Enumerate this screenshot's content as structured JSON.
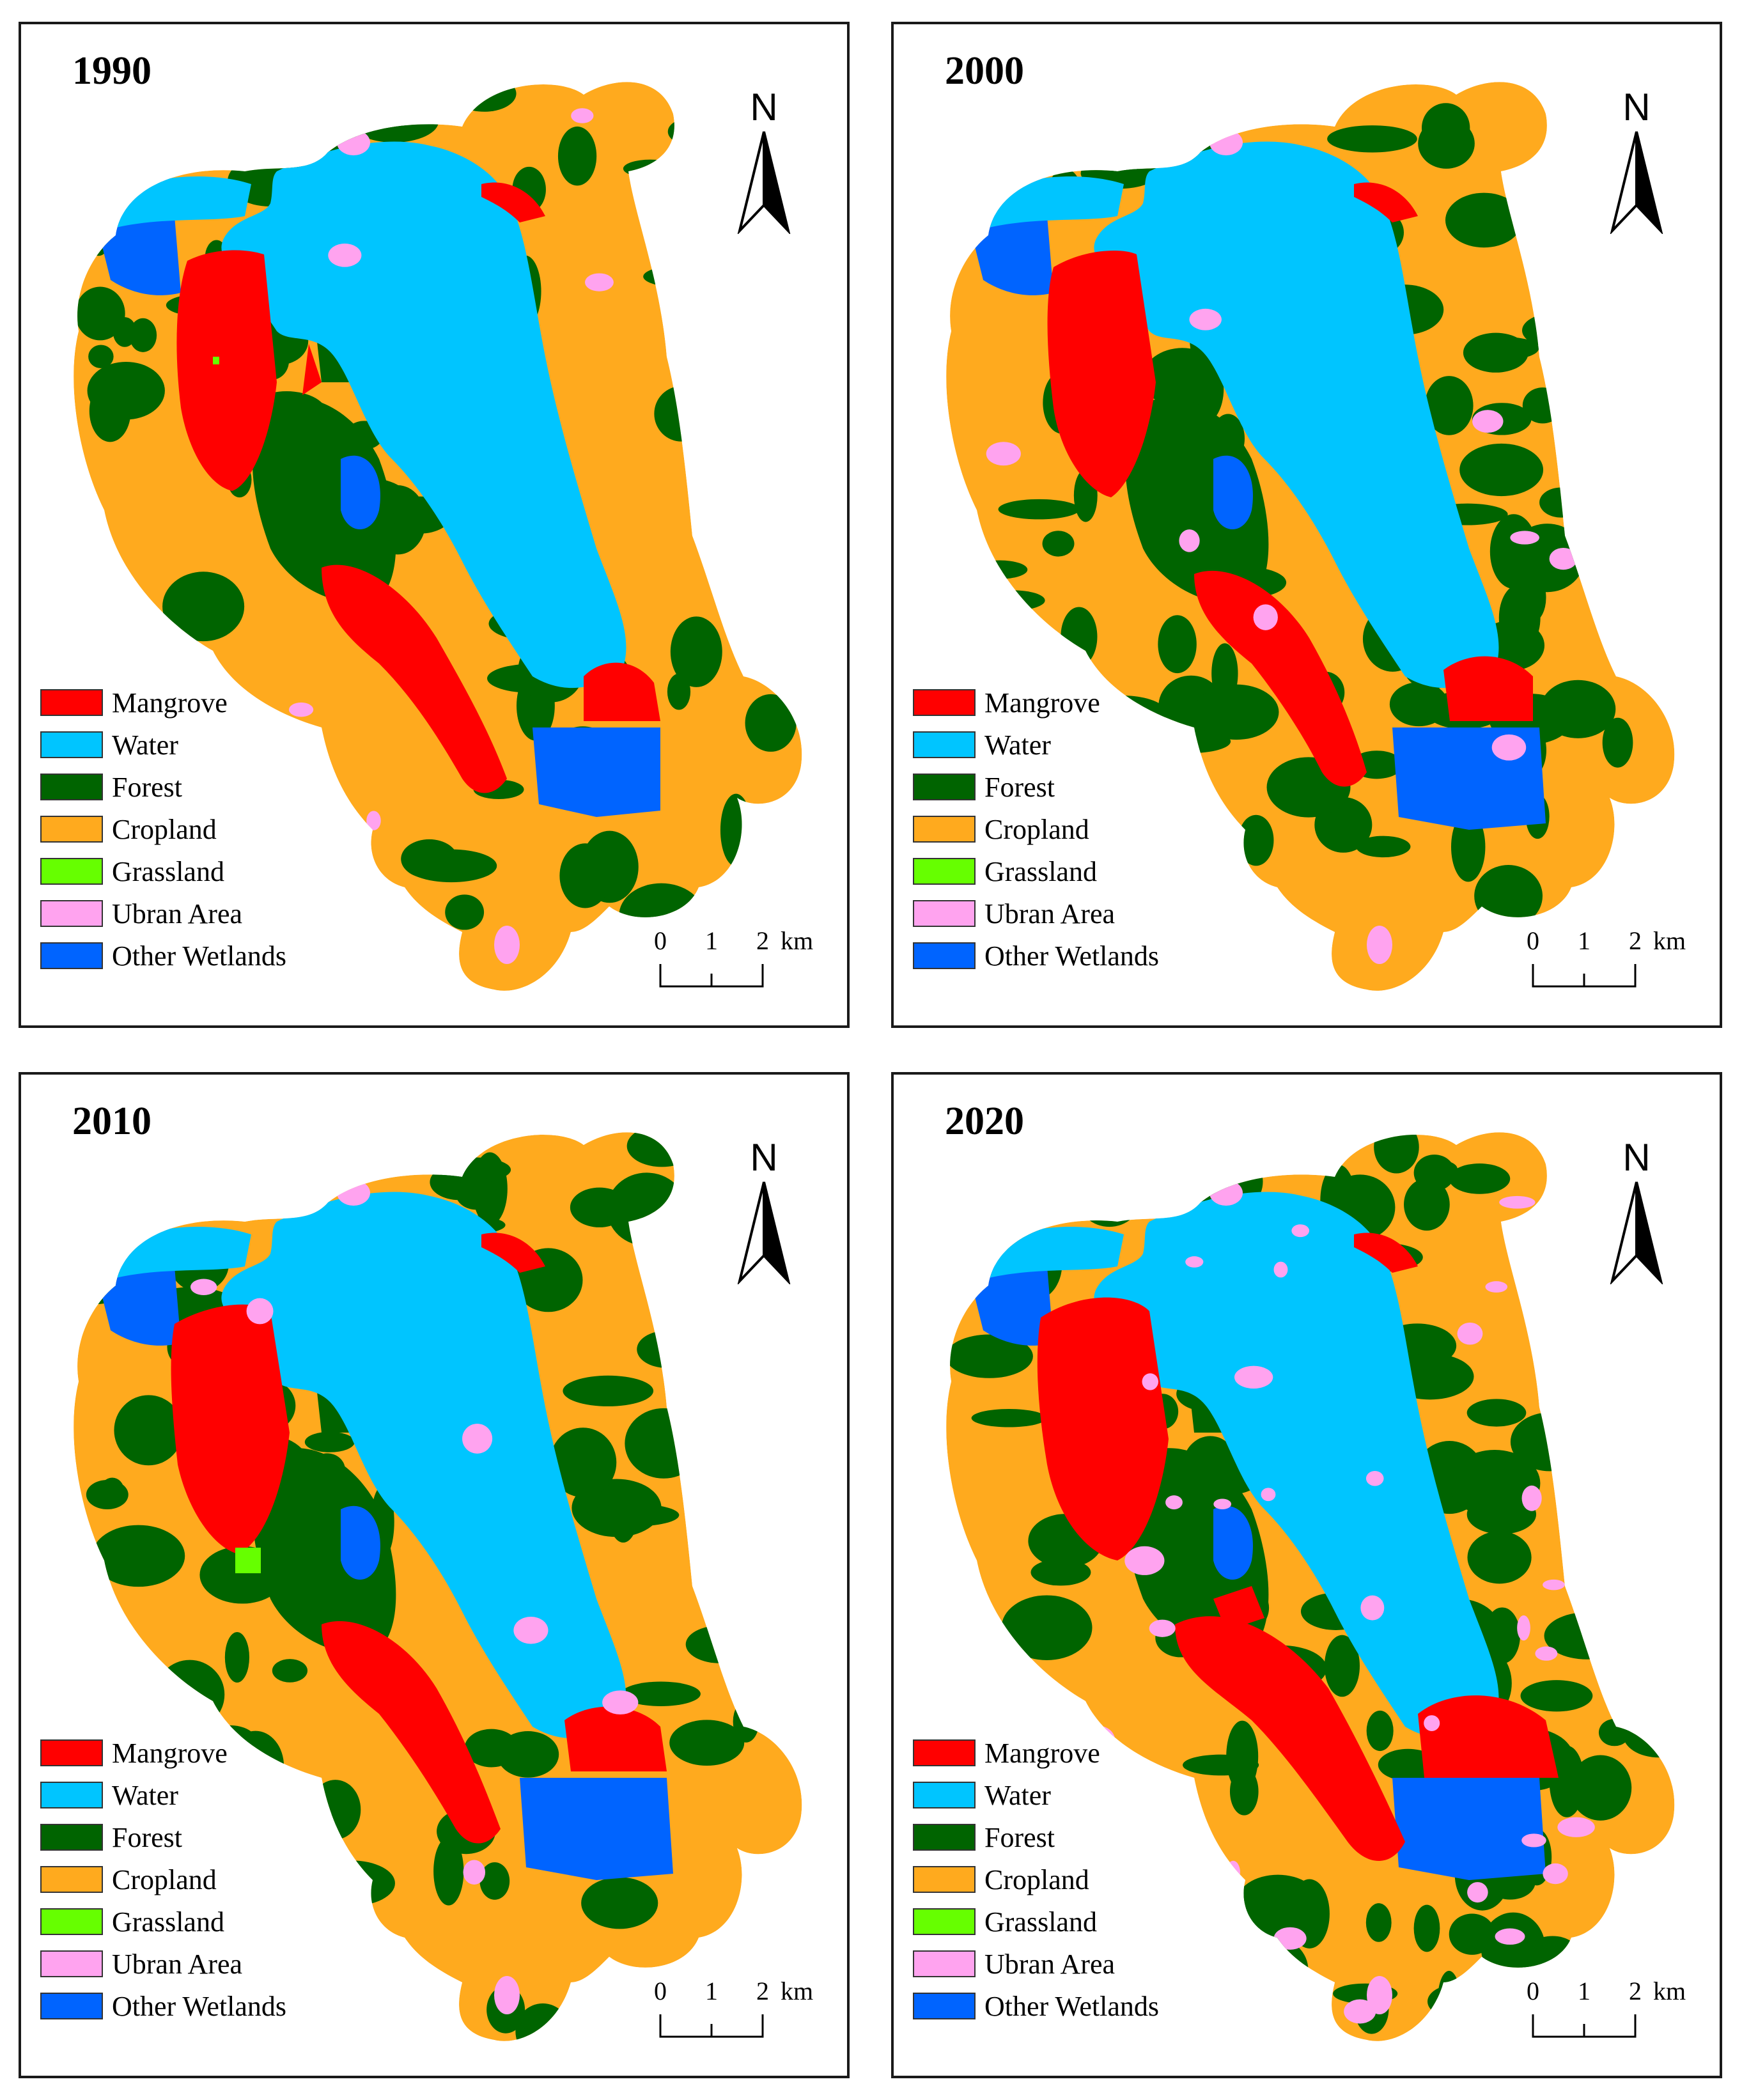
{
  "panels": [
    {
      "year": "1990"
    },
    {
      "year": "2000"
    },
    {
      "year": "2010"
    },
    {
      "year": "2020"
    }
  ],
  "north_label": "N",
  "scale_bar": {
    "labels": [
      "0",
      "1",
      "2"
    ],
    "unit": "km"
  },
  "legend": [
    {
      "label": "Mangrove",
      "color": "#ff0000"
    },
    {
      "label": "Water",
      "color": "#00c5ff"
    },
    {
      "label": "Forest",
      "color": "#006400"
    },
    {
      "label": "Cropland",
      "color": "#ffaa1e"
    },
    {
      "label": "Grassland",
      "color": "#66ff00"
    },
    {
      "label": "Ubran Area",
      "color": "#ffa3ef"
    },
    {
      "label": "Other Wetlands",
      "color": "#0064ff"
    }
  ]
}
